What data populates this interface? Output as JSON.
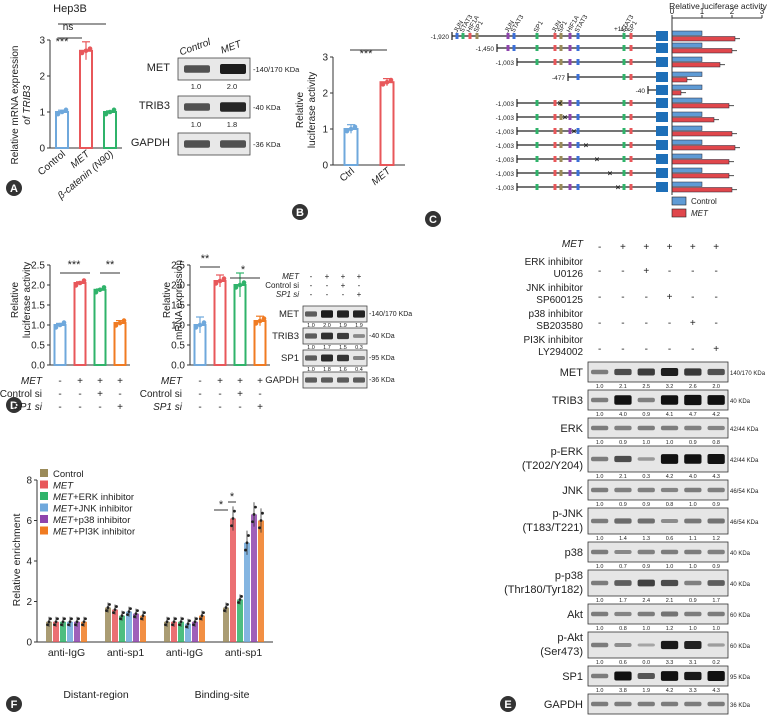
{
  "panel_a": {
    "title": "Hep3B",
    "ylabel_prefix": "Relative mRNA expression",
    "ylabel_italic": "of TRIB3",
    "categories": [
      "Control",
      "MET",
      "β-catenin (N90)"
    ],
    "sig": [
      "***",
      "ns"
    ],
    "letter": "A"
  },
  "panel_a_blot": {
    "headers": [
      "Control",
      "MET"
    ],
    "rows": [
      {
        "label": "MET",
        "mw": "140/170 KDa",
        "quant": [
          "1.0",
          "2.0"
        ]
      },
      {
        "label": "TRIB3",
        "mw": "40 KDa",
        "quant": [
          "1.0",
          "1.8"
        ]
      },
      {
        "label": "GAPDH",
        "mw": "36 KDa"
      }
    ]
  },
  "panel_b": {
    "ylabel1": "Relative",
    "ylabel2": "luciferase activity",
    "categories": [
      "Ctrl",
      "MET"
    ],
    "sig": "***",
    "letter": "B"
  },
  "panel_c": {
    "title": "Relative luciferase activity",
    "ticks": [
      "0",
      "1",
      "2",
      "3"
    ],
    "starts": [
      "-1,920",
      "-1,450",
      "-1,003",
      "-477",
      "-40",
      "-1,003",
      "-1,003",
      "-1,003",
      "-1,003",
      "-1,003",
      "-1,003",
      "-1,003"
    ],
    "end": "+115",
    "sites": [
      "JUN",
      "STAT3",
      "HIF1A",
      "SP1",
      "JUN",
      "STAT3",
      "SP1",
      "JUN",
      "SP1",
      "HIF1A",
      "STAT3",
      "STAT3",
      "SP1"
    ],
    "legend": [
      "Control",
      "MET"
    ],
    "letter": "C"
  },
  "panel_d": {
    "ylabel_luc1": "Relative",
    "ylabel_luc2": "luciferase activity",
    "ylabel_mrna1": "Relative",
    "ylabel_mrna2": "mRNA expression",
    "yticks": [
      "0.0",
      "0.5",
      "1.0",
      "1.5",
      "2.0",
      "2.5"
    ],
    "row_labels": [
      "MET",
      "Control si",
      "SP1 si"
    ],
    "signs": [
      [
        "-",
        "+",
        "+",
        "+"
      ],
      [
        "-",
        "-",
        "+",
        "-"
      ],
      [
        "-",
        "-",
        "-",
        "+"
      ]
    ],
    "sig_luc": [
      "***",
      "**"
    ],
    "sig_mrna": [
      "**",
      "*"
    ],
    "letter": "D"
  },
  "panel_d_blot": {
    "row_labels": [
      "MET",
      "Control si",
      "SP1 si"
    ],
    "rows": [
      {
        "label": "MET",
        "mw": "140/170 KDa",
        "quant": [
          "1.0",
          "2.0",
          "1.9",
          "1.9"
        ]
      },
      {
        "label": "TRIB3",
        "mw": "40 KDa",
        "quant": [
          "1.0",
          "1.7",
          "1.5",
          "0.3"
        ]
      },
      {
        "label": "SP1",
        "mw": "95 KDa",
        "quant": [
          "1.0",
          "1.8",
          "1.6",
          "0.4"
        ]
      },
      {
        "label": "GAPDH",
        "mw": "36 KDa"
      }
    ]
  },
  "panel_e": {
    "treatments": [
      {
        "label": "MET",
        "signs": [
          "-",
          "+",
          "+",
          "+",
          "+",
          "+"
        ]
      },
      {
        "label": "ERK inhibitor U0126",
        "signs": [
          "-",
          "-",
          "+",
          "-",
          "-",
          "-"
        ]
      },
      {
        "label": "JNK inhibitor SP600125",
        "signs": [
          "-",
          "-",
          "-",
          "+",
          "-",
          "-"
        ]
      },
      {
        "label": "p38 inhibitor SB203580",
        "signs": [
          "-",
          "-",
          "-",
          "-",
          "+",
          "-"
        ]
      },
      {
        "label": "PI3K inhibitor LY294002",
        "signs": [
          "-",
          "-",
          "-",
          "-",
          "-",
          "+"
        ]
      }
    ],
    "blots": [
      {
        "label": "MET",
        "mw": "140/170 KDa",
        "quant": [
          "1.0",
          "2.1",
          "2.5",
          "3.2",
          "2.6",
          "2.0"
        ]
      },
      {
        "label": "TRIB3",
        "mw": "40 KDa",
        "quant": [
          "1.0",
          "4.0",
          "0.9",
          "4.1",
          "4.7",
          "4.2"
        ]
      },
      {
        "label": "ERK",
        "mw": "42/44 KDa",
        "quant": [
          "1.0",
          "0.9",
          "1.0",
          "1.0",
          "0.9",
          "0.8"
        ]
      },
      {
        "label": "p-ERK (T202/Y204)",
        "mw": "42/44 KDa",
        "quant": [
          "1.0",
          "2.1",
          "0.3",
          "4.2",
          "4.0",
          "4.3"
        ]
      },
      {
        "label": "JNK",
        "mw": "46/54 KDa",
        "quant": [
          "1.0",
          "0.9",
          "0.9",
          "0.8",
          "1.0",
          "0.9"
        ]
      },
      {
        "label": "p-JNK (T183/T221)",
        "mw": "46/54 KDa",
        "quant": [
          "1.0",
          "1.4",
          "1.3",
          "0.6",
          "1.1",
          "1.2"
        ]
      },
      {
        "label": "p38",
        "mw": "40 KDa",
        "quant": [
          "1.0",
          "0.7",
          "0.9",
          "1.0",
          "1.0",
          "0.9"
        ]
      },
      {
        "label": "p-p38 (Thr180/Tyr182)",
        "mw": "40 KDa",
        "quant": [
          "1.0",
          "1.7",
          "2.4",
          "2.1",
          "0.9",
          "1.7"
        ]
      },
      {
        "label": "Akt",
        "mw": "60 KDa",
        "quant": [
          "1.0",
          "0.8",
          "1.0",
          "1.2",
          "1.0",
          "1.0"
        ]
      },
      {
        "label": "p-Akt (Ser473)",
        "mw": "60 KDa",
        "quant": [
          "1.0",
          "0.6",
          "0.0",
          "3.3",
          "3.1",
          "0.2"
        ]
      },
      {
        "label": "SP1",
        "mw": "95 KDa",
        "quant": [
          "1.0",
          "3.8",
          "1.9",
          "4.2",
          "3.3",
          "4.3"
        ]
      },
      {
        "label": "GAPDH",
        "mw": "36 KDa"
      }
    ],
    "letter": "E"
  },
  "panel_f": {
    "ylabel": "Relative enrichment",
    "yticks": [
      "0",
      "2",
      "4",
      "6",
      "8"
    ],
    "groups": [
      "anti-IgG",
      "anti-sp1",
      "anti-IgG",
      "anti-sp1"
    ],
    "regions": [
      "Distant-region",
      "Binding-site"
    ],
    "legend": [
      "Control",
      "MET",
      "MET+ERK inhibitor",
      "MET+JNK inhibitor",
      "MET+p38 inhibitor",
      "MET+PI3K inhibitor"
    ],
    "sig": [
      "*",
      "*"
    ],
    "letter": "F"
  },
  "colors": {
    "blue": "#6fa8dc",
    "red": "#e8575a",
    "green": "#2fb36a",
    "olive": "#9b8b5a",
    "purple": "#8e44ad",
    "orange": "#f07b22",
    "ctrl_box": "#5f9bd5",
    "met_box": "#e0474c"
  },
  "chart_data": [
    {
      "type": "bar",
      "panel": "A",
      "title": "Hep3B",
      "categories": [
        "Control",
        "MET",
        "β-catenin (N90)"
      ],
      "values": [
        1.0,
        2.7,
        1.0
      ],
      "ylabel": "Relative mRNA expression of TRIB3",
      "ylim": [
        0,
        3
      ],
      "yticks": [
        "0",
        "1",
        "2",
        "3"
      ]
    },
    {
      "type": "bar",
      "panel": "B",
      "categories": [
        "Ctrl",
        "MET"
      ],
      "values": [
        1.0,
        2.3
      ],
      "ylabel": "Relative luciferase activity",
      "ylim": [
        0,
        3
      ],
      "yticks": [
        "0",
        "1",
        "2",
        "3"
      ]
    },
    {
      "type": "bar",
      "panel": "C",
      "orientation": "horizontal",
      "title": "Relative luciferase activity",
      "xlim": [
        0,
        3
      ],
      "series": [
        {
          "name": "Control",
          "values": [
            1,
            1,
            1,
            1,
            1,
            1,
            1,
            1,
            1,
            1,
            1,
            1
          ]
        },
        {
          "name": "MET",
          "values": [
            2.1,
            2.0,
            1.6,
            0.5,
            0.3,
            1.9,
            1.4,
            2.0,
            2.1,
            1.9,
            1.9,
            2.0
          ]
        }
      ]
    },
    {
      "type": "bar",
      "panel": "D-luciferase",
      "categories": [
        "1",
        "2",
        "3",
        "4"
      ],
      "values": [
        1.0,
        2.05,
        1.88,
        1.05
      ],
      "ylabel": "Relative luciferase activity",
      "ylim": [
        0,
        2.5
      ],
      "yticks": [
        "0.0",
        "0.5",
        "1.0",
        "1.5",
        "2.0",
        "2.5"
      ]
    },
    {
      "type": "bar",
      "panel": "D-mRNA",
      "categories": [
        "1",
        "2",
        "3",
        "4"
      ],
      "values": [
        1.0,
        2.1,
        2.0,
        1.1
      ],
      "ylabel": "Relative mRNA expression",
      "ylim": [
        0,
        2.5
      ],
      "yticks": [
        "0.0",
        "0.5",
        "1.0",
        "1.5",
        "2.0",
        "2.5"
      ]
    },
    {
      "type": "bar",
      "panel": "F",
      "categories": [
        "anti-IgG",
        "anti-sp1",
        "anti-IgG",
        "anti-sp1"
      ],
      "ylabel": "Relative enrichment",
      "ylim": [
        0,
        8
      ],
      "yticks": [
        "0",
        "2",
        "4",
        "6",
        "8"
      ],
      "series": [
        {
          "name": "Control",
          "values": [
            1.0,
            1.7,
            1.0,
            1.7
          ]
        },
        {
          "name": "MET",
          "values": [
            1.0,
            1.6,
            1.0,
            6.1
          ]
        },
        {
          "name": "MET+ERK inhibitor",
          "values": [
            1.0,
            1.3,
            1.0,
            2.1
          ]
        },
        {
          "name": "MET+JNK inhibitor",
          "values": [
            1.0,
            1.5,
            0.9,
            4.9
          ]
        },
        {
          "name": "MET+p38 inhibitor",
          "values": [
            1.0,
            1.4,
            1.0,
            6.3
          ]
        },
        {
          "name": "MET+PI3K inhibitor",
          "values": [
            1.0,
            1.3,
            1.3,
            6.0
          ]
        }
      ]
    }
  ]
}
